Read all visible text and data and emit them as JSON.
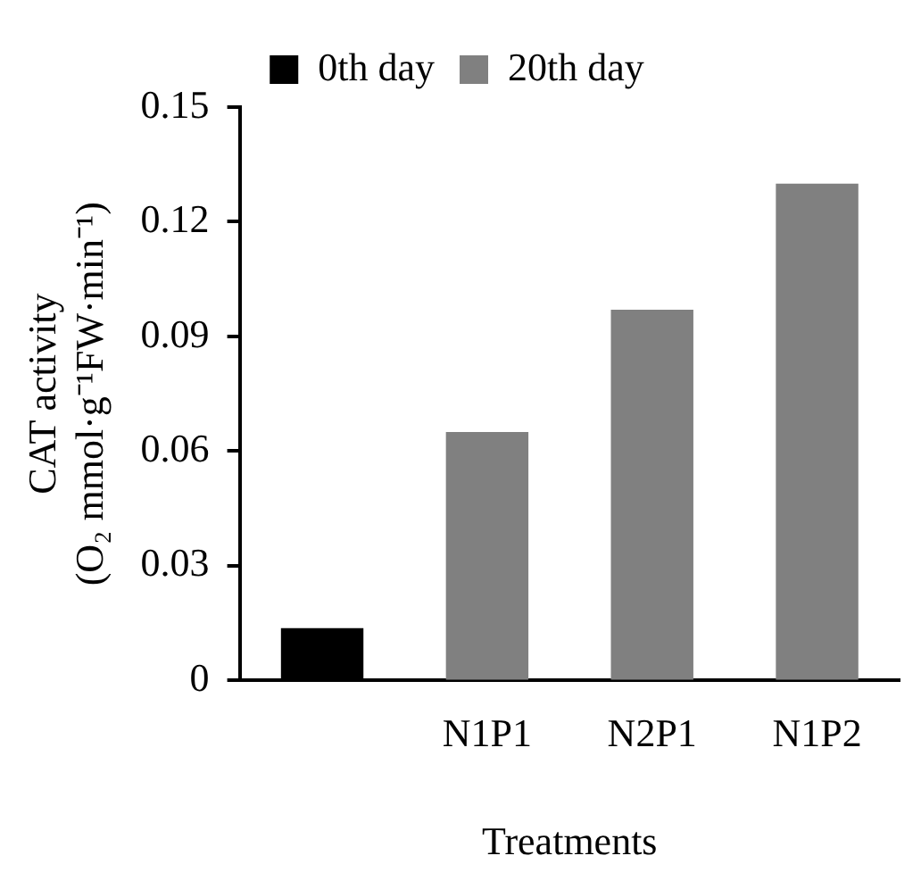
{
  "chart_data": {
    "type": "bar",
    "categories": [
      null,
      "N1P1",
      "N2P1",
      "N1P2"
    ],
    "series": [
      {
        "name": "0th day",
        "color": "#000000",
        "values": [
          0.0137,
          null,
          null,
          null
        ]
      },
      {
        "name": "20th day",
        "color": "#808080",
        "values": [
          null,
          0.065,
          0.097,
          0.13
        ]
      }
    ],
    "xlabel": "Treatments",
    "ylabel": "CAT activity\n(O₂ mmol·g⁻¹FW·min⁻¹)",
    "ylim": [
      0,
      0.15
    ],
    "yticks": [
      0,
      0.03,
      0.06,
      0.09,
      0.12,
      0.15
    ],
    "grid": false,
    "legend": "top"
  }
}
